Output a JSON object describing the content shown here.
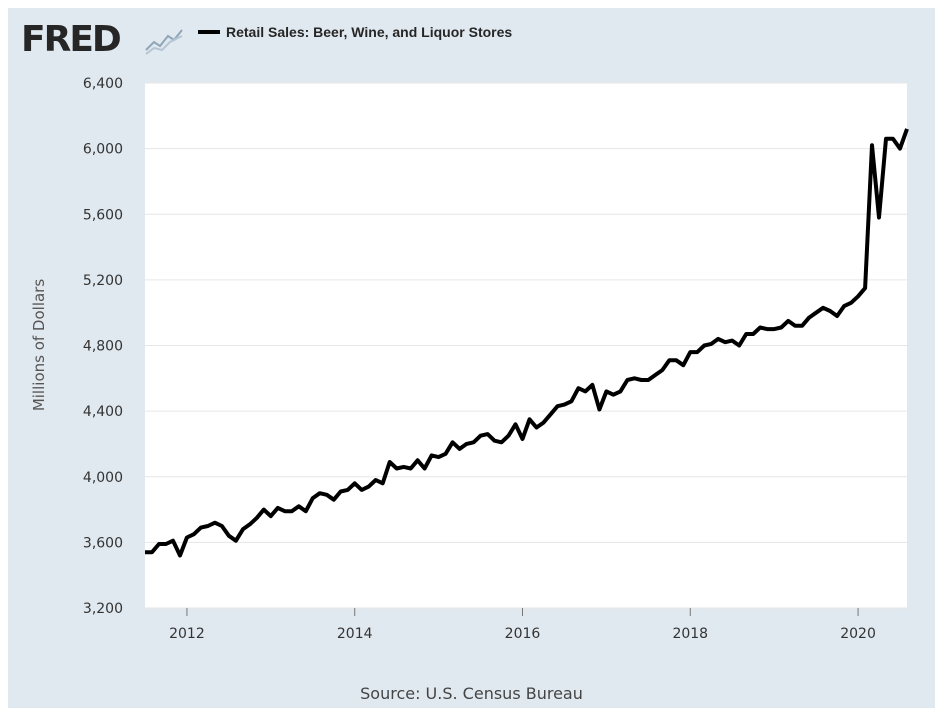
{
  "branding": {
    "logo_text": "FRED",
    "logo_icon": "fred-graph-icon"
  },
  "legend": {
    "label": "Retail Sales: Beer, Wine, and Liquor Stores",
    "color": "#000000"
  },
  "source": "Source: U.S. Census Bureau",
  "colors": {
    "background": "#e1e9f0",
    "plot_bg": "#ffffff",
    "grid": "#e6e6e6",
    "line": "#000000"
  },
  "chart_data": {
    "type": "line",
    "ylabel": "Millions of Dollars",
    "ylim": [
      3200,
      6400
    ],
    "yticks": [
      3200,
      3600,
      4000,
      4400,
      4800,
      5200,
      5600,
      6000,
      6400
    ],
    "ytick_labels": [
      "3,200",
      "3,600",
      "4,000",
      "4,400",
      "4,800",
      "5,200",
      "5,600",
      "6,000",
      "6,400"
    ],
    "xlim": [
      "2011-07",
      "2020-08"
    ],
    "xticks": [
      "2012-01",
      "2014-01",
      "2016-01",
      "2018-01",
      "2020-01"
    ],
    "xtick_labels": [
      "2012",
      "2014",
      "2016",
      "2018",
      "2020"
    ],
    "grid": true,
    "series": [
      {
        "name": "Retail Sales: Beer, Wine, and Liquor Stores",
        "x": [
          "2011-07",
          "2011-08",
          "2011-09",
          "2011-10",
          "2011-11",
          "2011-12",
          "2012-01",
          "2012-02",
          "2012-03",
          "2012-04",
          "2012-05",
          "2012-06",
          "2012-07",
          "2012-08",
          "2012-09",
          "2012-10",
          "2012-11",
          "2012-12",
          "2013-01",
          "2013-02",
          "2013-03",
          "2013-04",
          "2013-05",
          "2013-06",
          "2013-07",
          "2013-08",
          "2013-09",
          "2013-10",
          "2013-11",
          "2013-12",
          "2014-01",
          "2014-02",
          "2014-03",
          "2014-04",
          "2014-05",
          "2014-06",
          "2014-07",
          "2014-08",
          "2014-09",
          "2014-10",
          "2014-11",
          "2014-12",
          "2015-01",
          "2015-02",
          "2015-03",
          "2015-04",
          "2015-05",
          "2015-06",
          "2015-07",
          "2015-08",
          "2015-09",
          "2015-10",
          "2015-11",
          "2015-12",
          "2016-01",
          "2016-02",
          "2016-03",
          "2016-04",
          "2016-05",
          "2016-06",
          "2016-07",
          "2016-08",
          "2016-09",
          "2016-10",
          "2016-11",
          "2016-12",
          "2017-01",
          "2017-02",
          "2017-03",
          "2017-04",
          "2017-05",
          "2017-06",
          "2017-07",
          "2017-08",
          "2017-09",
          "2017-10",
          "2017-11",
          "2017-12",
          "2018-01",
          "2018-02",
          "2018-03",
          "2018-04",
          "2018-05",
          "2018-06",
          "2018-07",
          "2018-08",
          "2018-09",
          "2018-10",
          "2018-11",
          "2018-12",
          "2019-01",
          "2019-02",
          "2019-03",
          "2019-04",
          "2019-05",
          "2019-06",
          "2019-07",
          "2019-08",
          "2019-09",
          "2019-10",
          "2019-11",
          "2019-12",
          "2020-01",
          "2020-02",
          "2020-03",
          "2020-04",
          "2020-05",
          "2020-06",
          "2020-07",
          "2020-08"
        ],
        "values": [
          3540,
          3540,
          3590,
          3590,
          3610,
          3520,
          3630,
          3650,
          3690,
          3700,
          3720,
          3700,
          3640,
          3610,
          3680,
          3710,
          3750,
          3800,
          3760,
          3810,
          3790,
          3790,
          3820,
          3790,
          3870,
          3900,
          3890,
          3860,
          3910,
          3920,
          3960,
          3920,
          3940,
          3980,
          3960,
          4090,
          4050,
          4060,
          4050,
          4100,
          4050,
          4130,
          4120,
          4140,
          4210,
          4170,
          4200,
          4210,
          4250,
          4260,
          4220,
          4210,
          4250,
          4320,
          4230,
          4350,
          4300,
          4330,
          4380,
          4430,
          4440,
          4460,
          4540,
          4520,
          4560,
          4410,
          4520,
          4500,
          4520,
          4590,
          4600,
          4590,
          4590,
          4620,
          4650,
          4710,
          4710,
          4680,
          4760,
          4760,
          4800,
          4810,
          4840,
          4820,
          4830,
          4800,
          4870,
          4870,
          4910,
          4900,
          4900,
          4910,
          4950,
          4920,
          4920,
          4970,
          5000,
          5030,
          5010,
          4980,
          5040,
          5060,
          5100,
          5150,
          6020,
          5580,
          6060,
          6060,
          6000,
          6120
        ]
      }
    ]
  }
}
